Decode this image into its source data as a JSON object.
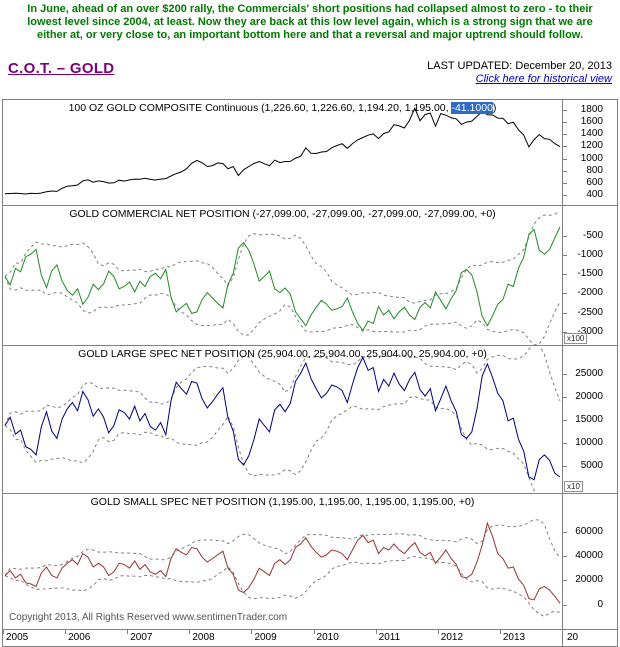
{
  "annotation": "In June, ahead of an over $200 rally,  the Commercials' short positions had collapsed almost to zero - to their lowest level since 2004, at least. Now they are back at this low level again, which is a strong sign that we are either at, or very close to, an important bottom here and that a reversal and major uptrend should follow.",
  "header": {
    "title": "C.O.T. – GOLD",
    "last_updated_label": "LAST UPDATED:",
    "last_updated_value": "December 20, 2013",
    "link": "Click here for historical view"
  },
  "footer": {
    "copyright": "Copyright 2013, All Rights Reserved  www.sentimenTrader.com"
  },
  "colors": {
    "annotation_green": "#007A00",
    "title_purple": "#7B007B",
    "link_blue": "#0000D0",
    "highlight_bg": "#316AC5",
    "band": "#808080",
    "price_line": "#000000",
    "commercial_line": "#228B22",
    "large_spec_line": "#000080",
    "small_spec_line": "#993333"
  },
  "chart_data": {
    "type": "line",
    "frequency": "monthly",
    "x_range": [
      "2005-01",
      "2013-12"
    ],
    "x_axis": {
      "years": [
        "2005",
        "2006",
        "2007",
        "2008",
        "2009",
        "2010",
        "2011",
        "2012",
        "2013"
      ],
      "partial_year": "20"
    },
    "panels": [
      {
        "name": "100 OZ GOLD COMPOSITE Continuous",
        "title_prefix": "100 OZ GOLD COMPOSITE Continuous (1,226.60, 1,226.60, 1,194.20, 1,195.00, ",
        "title_highlight": "-41.1000",
        "title_suffix": ")",
        "color": "#000000",
        "ylim": [
          240,
          1960
        ],
        "ticks": [
          1800,
          1600,
          1400,
          1200,
          1000,
          800,
          600,
          400
        ],
        "has_bands": false,
        "values": [
          425,
          428,
          434,
          429,
          421,
          432,
          427,
          437,
          456,
          470,
          462,
          513,
          547,
          556,
          568,
          636,
          653,
          613,
          634,
          623,
          599,
          604,
          646,
          632,
          651,
          665,
          662,
          677,
          659,
          650,
          665,
          672,
          715,
          754,
          783,
          834,
          923,
          971,
          933,
          871,
          886,
          930,
          918,
          833,
          871,
          724,
          816,
          870,
          919,
          952,
          916,
          883,
          975,
          934,
          953,
          955,
          1008,
          1040,
          1175,
          1087,
          1083,
          1108,
          1116,
          1179,
          1215,
          1244,
          1169,
          1246,
          1307,
          1346,
          1383,
          1405,
          1327,
          1409,
          1439,
          1556,
          1536,
          1502,
          1628,
          1826,
          1620,
          1722,
          1746,
          1531,
          1737,
          1711,
          1668,
          1651,
          1560,
          1598,
          1615,
          1692,
          1771,
          1719,
          1714,
          1664,
          1661,
          1572,
          1596,
          1472,
          1387,
          1192,
          1311,
          1394,
          1327,
          1316,
          1246,
          1195
        ]
      },
      {
        "name": "GOLD COMMERCIAL NET POSITION",
        "title": "GOLD COMMERCIAL NET POSITION (-27,099.00, -27,099.00, -27,099.00, -27,099.00, +0)",
        "color": "#228B22",
        "ylim": [
          -3340,
          270
        ],
        "ticks": [
          -500,
          -1000,
          -1500,
          -2000,
          -2500,
          -3000
        ],
        "multiplier": "x100",
        "has_bands": true,
        "values": [
          -1560,
          -1780,
          -1350,
          -1440,
          -1050,
          -980,
          -860,
          -1520,
          -1850,
          -1420,
          -1260,
          -1680,
          -1920,
          -2050,
          -1880,
          -2280,
          -2100,
          -1760,
          -1900,
          -1750,
          -1420,
          -1560,
          -1880,
          -1820,
          -1700,
          -1960,
          -1680,
          -1820,
          -1560,
          -1480,
          -1620,
          -1380,
          -2100,
          -2480,
          -2360,
          -2260,
          -2520,
          -2480,
          -2160,
          -1980,
          -2120,
          -2260,
          -2380,
          -1760,
          -1480,
          -820,
          -680,
          -880,
          -1240,
          -1680,
          -1560,
          -1420,
          -1880,
          -1980,
          -1860,
          -2020,
          -2480,
          -2660,
          -2840,
          -2560,
          -2360,
          -2180,
          -2280,
          -2440,
          -2400,
          -2340,
          -2120,
          -2480,
          -2780,
          -2960,
          -2720,
          -2780,
          -2340,
          -2560,
          -2440,
          -2660,
          -2480,
          -2360,
          -2560,
          -2680,
          -2360,
          -2240,
          -2380,
          -1960,
          -2180,
          -2400,
          -2140,
          -1920,
          -1460,
          -1380,
          -1520,
          -1960,
          -2600,
          -2840,
          -2580,
          -2280,
          -2160,
          -1760,
          -1820,
          -1340,
          -1060,
          -460,
          -340,
          -880,
          -980,
          -860,
          -560,
          -271
        ]
      },
      {
        "name": "GOLD LARGE SPEC NET POSITION",
        "title": "GOLD LARGE SPEC NET POSITION (25,904.00, 25,904.00, 25,904.00, 25,904.00, +0)",
        "color": "#000080",
        "ylim": [
          -900,
          31100
        ],
        "ticks": [
          25000,
          20000,
          15000,
          10000,
          5000
        ],
        "multiplier": "x10",
        "has_bands": true,
        "values": [
          13800,
          15600,
          11900,
          12800,
          9200,
          8600,
          7400,
          13500,
          16800,
          12600,
          11000,
          15200,
          17400,
          18800,
          17000,
          21200,
          19400,
          15800,
          17400,
          15600,
          12200,
          13800,
          17200,
          16600,
          15200,
          18000,
          14800,
          16400,
          13600,
          12800,
          14400,
          11800,
          19200,
          23200,
          21800,
          20600,
          23400,
          23000,
          19600,
          17600,
          19000,
          20600,
          22000,
          15400,
          12600,
          6400,
          5200,
          7200,
          10800,
          15200,
          13800,
          12400,
          17200,
          18400,
          16800,
          18600,
          23400,
          25200,
          27400,
          24000,
          21800,
          19800,
          20800,
          22600,
          22200,
          21400,
          18800,
          22800,
          26400,
          28600,
          25800,
          26400,
          21200,
          23800,
          22400,
          25200,
          22800,
          21400,
          23800,
          25400,
          21600,
          20200,
          21800,
          17000,
          19600,
          22400,
          19200,
          16800,
          11800,
          11000,
          12400,
          17400,
          24600,
          27200,
          24200,
          20800,
          19200,
          14800,
          15400,
          10800,
          8200,
          2600,
          2000,
          6400,
          7400,
          6200,
          3400,
          2590
        ]
      },
      {
        "name": "GOLD SMALL SPEC NET POSITION",
        "title": "GOLD SMALL SPEC NET POSITION (1,195.00, 1,195.00, 1,195.00, 1,195.00, +0)",
        "color": "#993333",
        "ylim": [
          -20000,
          91000
        ],
        "ticks": [
          60000,
          40000,
          20000,
          0
        ],
        "has_bands": true,
        "values": [
          24000,
          28000,
          22000,
          25000,
          18000,
          17000,
          15000,
          26000,
          31000,
          24000,
          22000,
          30000,
          34000,
          37000,
          33000,
          42000,
          39000,
          31000,
          34000,
          31000,
          24000,
          27000,
          34000,
          33000,
          30000,
          36000,
          29000,
          33000,
          27000,
          25000,
          28000,
          23000,
          38000,
          46000,
          43000,
          41000,
          47000,
          46000,
          39000,
          35000,
          38000,
          41000,
          44000,
          30000,
          25000,
          12000,
          10000,
          14000,
          21000,
          30000,
          27000,
          24000,
          34000,
          37000,
          33000,
          37000,
          47000,
          50000,
          55000,
          48000,
          43000,
          39000,
          41000,
          45000,
          44000,
          42000,
          37000,
          45000,
          53000,
          57000,
          51000,
          53000,
          42000,
          47000,
          45000,
          50000,
          45000,
          42000,
          47000,
          51000,
          43000,
          40000,
          43000,
          34000,
          39000,
          45000,
          38000,
          33000,
          23000,
          22000,
          25000,
          35000,
          49000,
          67000,
          56000,
          42000,
          38000,
          30000,
          31000,
          21000,
          16000,
          5000,
          4000,
          13000,
          15000,
          12000,
          7000,
          1195
        ]
      }
    ]
  }
}
